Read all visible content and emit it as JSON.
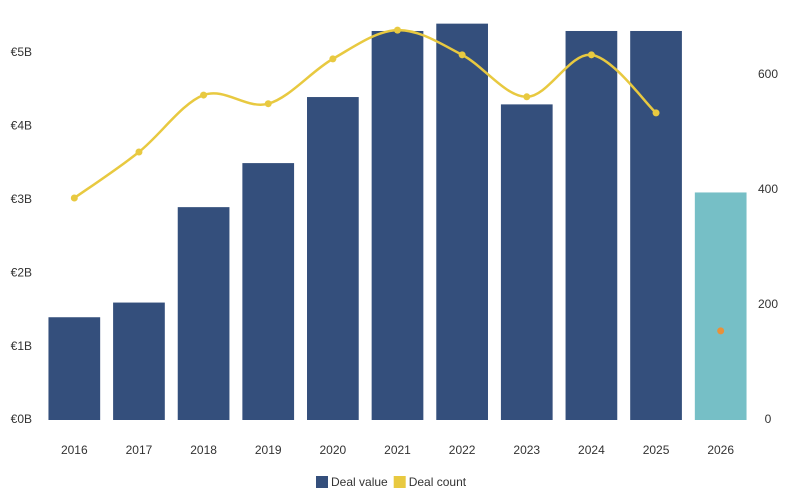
{
  "chart_data": {
    "type": "bar_line",
    "categories": [
      "2016",
      "2017",
      "2018",
      "2019",
      "2020",
      "2021",
      "2022",
      "2023",
      "2024",
      "2025",
      "2026"
    ],
    "series": [
      {
        "name": "Deal value",
        "color": "#344f7c",
        "axis": "y",
        "values": [
          1.4,
          1.6,
          2.9,
          3.5,
          4.4,
          5.3,
          5.4,
          4.3,
          5.3,
          5.3,
          3.1
        ],
        "point_colors": [
          "#344f7c",
          "#344f7c",
          "#344f7c",
          "#344f7c",
          "#344f7c",
          "#344f7c",
          "#344f7c",
          "#344f7c",
          "#344f7c",
          "#344f7c",
          "#76bfc6"
        ]
      },
      {
        "name": "Deal count",
        "color": "#e8c940",
        "axis": "y2",
        "values": [
          386,
          466,
          565,
          550,
          628,
          678,
          635,
          562,
          635,
          534,
          155
        ],
        "point_colors": [
          "#e8c940",
          "#e8c940",
          "#e8c940",
          "#e8c940",
          "#e8c940",
          "#e8c940",
          "#e8c940",
          "#e8c940",
          "#e8c940",
          "#e8c940",
          "#e8913a"
        ]
      }
    ],
    "ylim": [
      0,
      5.5
    ],
    "yticks": [
      {
        "value": 0,
        "label": "€0B"
      },
      {
        "value": 1,
        "label": "€1B"
      },
      {
        "value": 2,
        "label": "€2B"
      },
      {
        "value": 3,
        "label": "€3B"
      },
      {
        "value": 4,
        "label": "€4B"
      },
      {
        "value": 5,
        "label": "€5B"
      }
    ],
    "y2lim": [
      0,
      702
    ],
    "y2ticks": [
      0,
      200,
      400,
      600
    ],
    "legend": "bottom"
  }
}
